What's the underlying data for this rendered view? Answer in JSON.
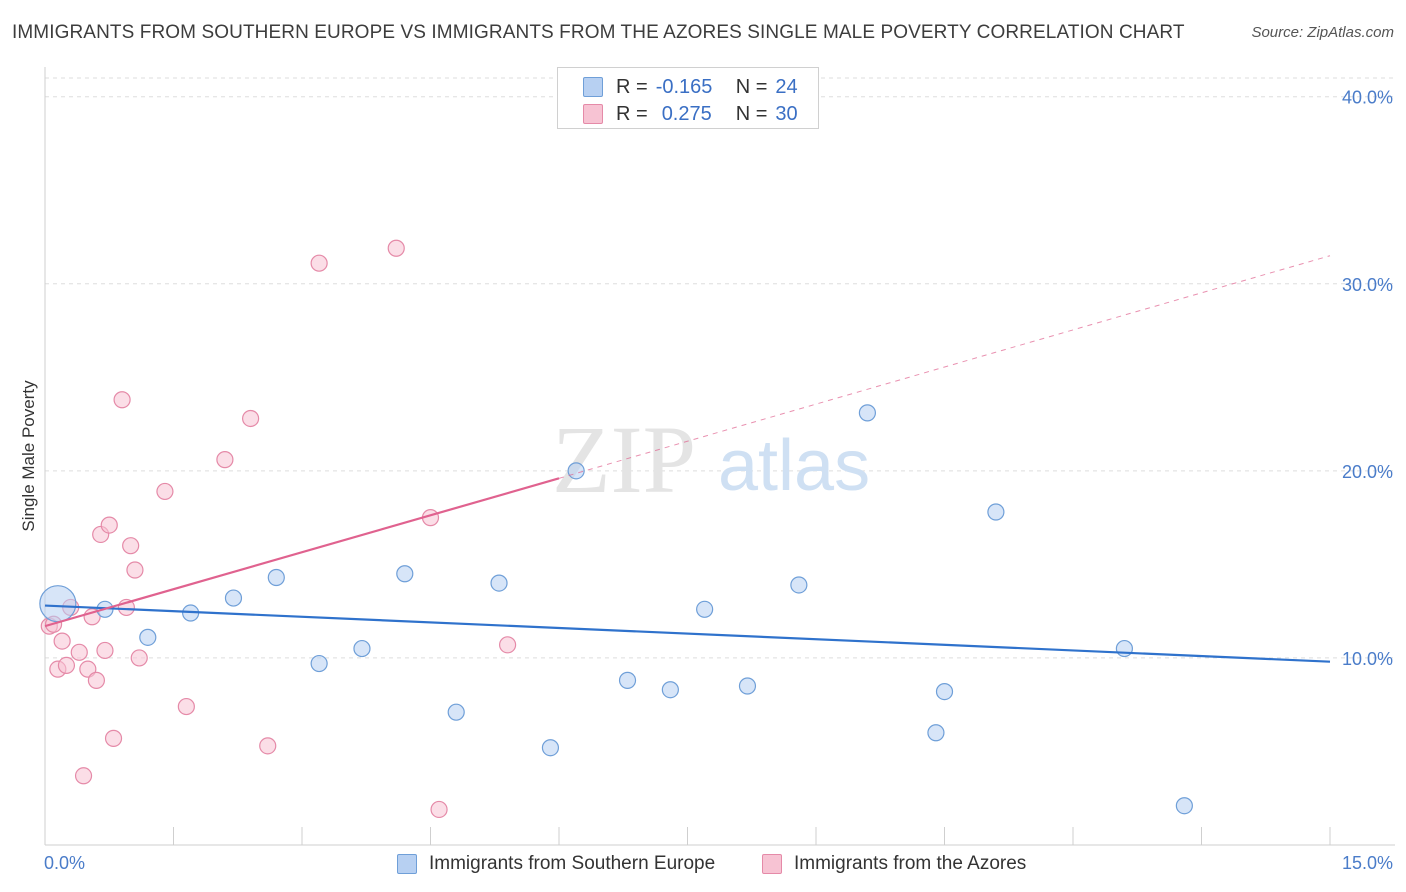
{
  "header": {
    "title": "IMMIGRANTS FROM SOUTHERN EUROPE VS IMMIGRANTS FROM THE AZORES SINGLE MALE POVERTY CORRELATION CHART",
    "source": "Source: ZipAtlas.com"
  },
  "watermark": {
    "zip": "ZIP",
    "atlas": "atlas"
  },
  "legend": {
    "r_label": "R =",
    "n_label": "N =",
    "rows": [
      {
        "r": "-0.165",
        "n": "24"
      },
      {
        "r": "0.275",
        "n": "30"
      }
    ]
  },
  "bottom_legend": {
    "series1": "Immigrants from Southern Europe",
    "series2": "Immigrants from the Azores"
  },
  "colors": {
    "blue_fill": "#b7d0f2",
    "blue_stroke": "#6f9fd8",
    "blue_line": "#2f72cc",
    "pink_fill": "#f7c3d3",
    "pink_stroke": "#e58aa8",
    "pink_line": "#e0628f",
    "tick_text": "#4a7cc9",
    "grid": "#dedede"
  },
  "chart_data": {
    "type": "scatter",
    "title": "IMMIGRANTS FROM SOUTHERN EUROPE VS IMMIGRANTS FROM THE AZORES SINGLE MALE POVERTY CORRELATION CHART",
    "xlabel": "",
    "ylabel": "Single Male Poverty",
    "xlim": [
      0,
      15
    ],
    "ylim": [
      0,
      41
    ],
    "x_tick_labels": [
      "0.0%",
      "15.0%"
    ],
    "y_ticks": [
      10,
      20,
      30,
      40
    ],
    "y_tick_labels": [
      "10.0%",
      "20.0%",
      "30.0%",
      "40.0%"
    ],
    "grid": true,
    "legend_position": "top-center",
    "series": [
      {
        "name": "Immigrants from Southern Europe",
        "color": "blue",
        "r": -0.165,
        "n": 24,
        "trend": {
          "x": [
            0,
            15
          ],
          "y": [
            12.8,
            9.8
          ],
          "dashed_extension": false
        },
        "points": [
          {
            "x": 0.15,
            "y": 12.9,
            "size": "large"
          },
          {
            "x": 0.7,
            "y": 12.6
          },
          {
            "x": 1.2,
            "y": 11.1
          },
          {
            "x": 1.7,
            "y": 12.4
          },
          {
            "x": 2.2,
            "y": 13.2
          },
          {
            "x": 2.7,
            "y": 14.3
          },
          {
            "x": 3.2,
            "y": 9.7
          },
          {
            "x": 3.7,
            "y": 10.5
          },
          {
            "x": 4.2,
            "y": 14.5
          },
          {
            "x": 4.8,
            "y": 7.1
          },
          {
            "x": 5.3,
            "y": 14.0
          },
          {
            "x": 5.9,
            "y": 5.2
          },
          {
            "x": 6.2,
            "y": 20.0
          },
          {
            "x": 6.8,
            "y": 8.8
          },
          {
            "x": 7.3,
            "y": 8.3
          },
          {
            "x": 7.7,
            "y": 12.6
          },
          {
            "x": 8.2,
            "y": 8.5
          },
          {
            "x": 8.8,
            "y": 13.9
          },
          {
            "x": 9.6,
            "y": 23.1
          },
          {
            "x": 10.4,
            "y": 6.0
          },
          {
            "x": 10.5,
            "y": 8.2
          },
          {
            "x": 11.1,
            "y": 17.8
          },
          {
            "x": 12.6,
            "y": 10.5
          },
          {
            "x": 13.3,
            "y": 2.1
          }
        ]
      },
      {
        "name": "Immigrants from the Azores",
        "color": "pink",
        "r": 0.275,
        "n": 30,
        "trend": {
          "x": [
            0,
            6.0
          ],
          "y": [
            11.7,
            19.6
          ],
          "dashed_extension": true,
          "extension_to": [
            15,
            31.5
          ]
        },
        "points": [
          {
            "x": 0.05,
            "y": 11.7
          },
          {
            "x": 0.1,
            "y": 11.8
          },
          {
            "x": 0.15,
            "y": 9.4
          },
          {
            "x": 0.2,
            "y": 10.9
          },
          {
            "x": 0.25,
            "y": 9.6
          },
          {
            "x": 0.3,
            "y": 12.7
          },
          {
            "x": 0.4,
            "y": 10.3
          },
          {
            "x": 0.45,
            "y": 3.7
          },
          {
            "x": 0.5,
            "y": 9.4
          },
          {
            "x": 0.55,
            "y": 12.2
          },
          {
            "x": 0.6,
            "y": 8.8
          },
          {
            "x": 0.65,
            "y": 16.6
          },
          {
            "x": 0.7,
            "y": 10.4
          },
          {
            "x": 0.75,
            "y": 17.1
          },
          {
            "x": 0.8,
            "y": 5.7
          },
          {
            "x": 0.9,
            "y": 23.8
          },
          {
            "x": 0.95,
            "y": 12.7
          },
          {
            "x": 1.0,
            "y": 16.0
          },
          {
            "x": 1.05,
            "y": 14.7
          },
          {
            "x": 1.1,
            "y": 10.0
          },
          {
            "x": 1.4,
            "y": 18.9
          },
          {
            "x": 1.65,
            "y": 7.4
          },
          {
            "x": 2.1,
            "y": 20.6
          },
          {
            "x": 2.4,
            "y": 22.8
          },
          {
            "x": 2.6,
            "y": 5.3
          },
          {
            "x": 3.2,
            "y": 31.1
          },
          {
            "x": 4.1,
            "y": 31.9
          },
          {
            "x": 4.5,
            "y": 17.5
          },
          {
            "x": 4.6,
            "y": 1.9
          },
          {
            "x": 5.4,
            "y": 10.7
          }
        ]
      }
    ]
  }
}
